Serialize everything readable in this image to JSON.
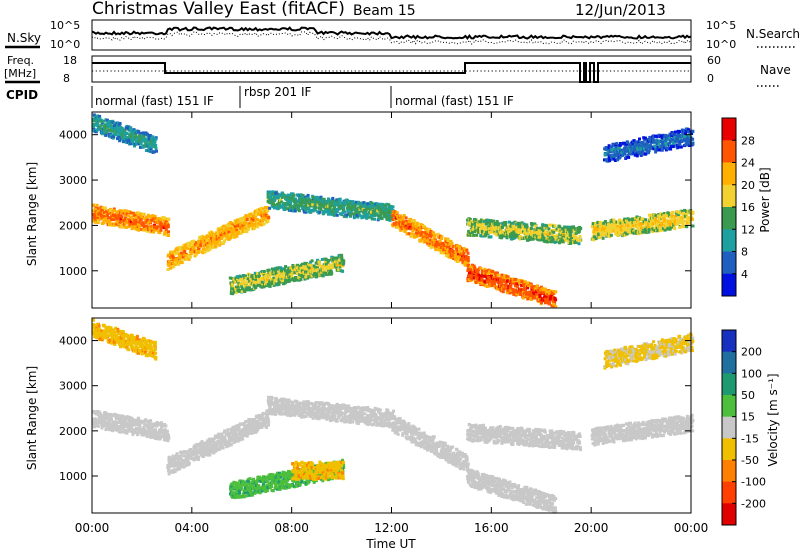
{
  "header": {
    "title": "Christmas Valley East (fitACF)",
    "beam": "Beam 15",
    "date": "12/Jun/2013"
  },
  "top_panels": {
    "nsky_label": "N.Sky",
    "nsky_ticks": [
      "10^5",
      "10^0"
    ],
    "nsearch_label": "N.Search",
    "nsearch_ticks": [
      "10^5",
      "10^0"
    ],
    "freq_label": "Freq.",
    "freq_unit": "[MHz]",
    "freq_ticks": [
      "18",
      "8"
    ],
    "nave_label": "Nave",
    "nave_ticks": [
      "60",
      "0"
    ],
    "cpid_label": "CPID",
    "cpid_segments": [
      {
        "label": "normal (fast) 151 IF",
        "start": 0,
        "end": 6
      },
      {
        "label": "rbsp 201 IF",
        "start": 6,
        "end": 12
      },
      {
        "label": "normal (fast) 151 IF",
        "start": 12,
        "end": 24
      }
    ]
  },
  "chart_data": [
    {
      "type": "heatmap",
      "title": "",
      "ylabel": "Slant Range [km]",
      "xlabel": "Time UT",
      "xlim": [
        0,
        24
      ],
      "ylim": [
        180,
        4500
      ],
      "x_ticks": [
        "00:00",
        "04:00",
        "08:00",
        "12:00",
        "16:00",
        "20:00",
        "00:00"
      ],
      "y_ticks": [
        1000,
        2000,
        3000,
        4000
      ],
      "colorbar": {
        "label": "Power [dB]",
        "ticks": [
          28,
          24,
          20,
          16,
          12,
          8,
          4
        ],
        "colors": [
          "#e80000",
          "#ff5500",
          "#ffb000",
          "#f2d230",
          "#3a9a50",
          "#1fa0a0",
          "#1f5fbf",
          "#0010e0"
        ]
      },
      "scatter_bands": [
        {
          "start_h": 0.0,
          "end_h": 3.0,
          "range_start_km": 2300,
          "range_end_km": 2000,
          "power_db": 26
        },
        {
          "start_h": 3.0,
          "end_h": 7.0,
          "range_start_km": 1250,
          "range_end_km": 2300,
          "power_db": 24
        },
        {
          "start_h": 7.0,
          "end_h": 12.0,
          "range_start_km": 2600,
          "range_end_km": 2300,
          "power_db": 14
        },
        {
          "start_h": 5.5,
          "end_h": 10.0,
          "range_start_km": 700,
          "range_end_km": 1200,
          "power_db": 18
        },
        {
          "start_h": 12.0,
          "end_h": 15.0,
          "range_start_km": 2200,
          "range_end_km": 1300,
          "power_db": 26
        },
        {
          "start_h": 15.0,
          "end_h": 18.5,
          "range_start_km": 1000,
          "range_end_km": 400,
          "power_db": 28
        },
        {
          "start_h": 15.0,
          "end_h": 19.5,
          "range_start_km": 2000,
          "range_end_km": 1800,
          "power_db": 18
        },
        {
          "start_h": 20.0,
          "end_h": 24.0,
          "range_start_km": 1900,
          "range_end_km": 2200,
          "power_db": 20
        },
        {
          "start_h": 0.0,
          "end_h": 2.5,
          "range_start_km": 4300,
          "range_end_km": 3800,
          "power_db": 12
        },
        {
          "start_h": 20.5,
          "end_h": 24.0,
          "range_start_km": 3600,
          "range_end_km": 4000,
          "power_db": 8
        }
      ]
    },
    {
      "type": "heatmap",
      "title": "",
      "ylabel": "Slant Range [km]",
      "xlabel": "Time UT",
      "xlim": [
        0,
        24
      ],
      "ylim": [
        180,
        4500
      ],
      "x_ticks": [
        "00:00",
        "04:00",
        "08:00",
        "12:00",
        "16:00",
        "20:00",
        "00:00"
      ],
      "y_ticks": [
        1000,
        2000,
        3000,
        4000
      ],
      "colorbar": {
        "label": "Velocity [m s⁻¹]",
        "ticks": [
          200,
          100,
          50,
          15,
          -15,
          -50,
          -100,
          -200
        ],
        "colors": [
          "#1830c0",
          "#1f6fa0",
          "#1f9a70",
          "#4cbf3c",
          "#c8c8c8",
          "#f0c000",
          "#ff8000",
          "#ff4000",
          "#e00000"
        ]
      },
      "scatter_bands": [
        {
          "start_h": 0.0,
          "end_h": 3.0,
          "range_start_km": 2300,
          "range_end_km": 2000,
          "velocity_ms": 0
        },
        {
          "start_h": 3.0,
          "end_h": 7.0,
          "range_start_km": 1250,
          "range_end_km": 2300,
          "velocity_ms": 0
        },
        {
          "start_h": 7.0,
          "end_h": 12.0,
          "range_start_km": 2600,
          "range_end_km": 2300,
          "velocity_ms": 0
        },
        {
          "start_h": 5.5,
          "end_h": 10.0,
          "range_start_km": 700,
          "range_end_km": 1200,
          "velocity_ms": 40
        },
        {
          "start_h": 8.0,
          "end_h": 10.0,
          "range_start_km": 1150,
          "range_end_km": 1150,
          "velocity_ms": -40
        },
        {
          "start_h": 12.0,
          "end_h": 15.0,
          "range_start_km": 2200,
          "range_end_km": 1300,
          "velocity_ms": 0
        },
        {
          "start_h": 15.0,
          "end_h": 18.5,
          "range_start_km": 1000,
          "range_end_km": 400,
          "velocity_ms": 0
        },
        {
          "start_h": 15.0,
          "end_h": 19.5,
          "range_start_km": 2000,
          "range_end_km": 1800,
          "velocity_ms": 0
        },
        {
          "start_h": 20.0,
          "end_h": 24.0,
          "range_start_km": 1900,
          "range_end_km": 2200,
          "velocity_ms": 0
        },
        {
          "start_h": 0.0,
          "end_h": 2.5,
          "range_start_km": 4300,
          "range_end_km": 3800,
          "velocity_ms": -40
        },
        {
          "start_h": 20.5,
          "end_h": 24.0,
          "range_start_km": 3600,
          "range_end_km": 4000,
          "velocity_ms": -20
        }
      ]
    }
  ]
}
